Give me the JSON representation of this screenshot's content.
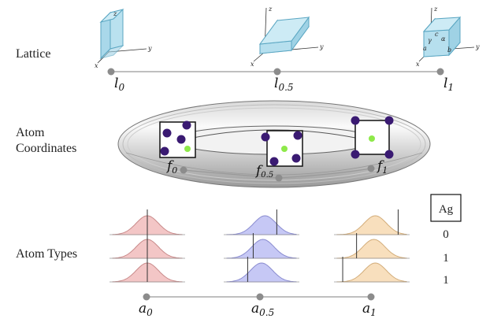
{
  "rows": {
    "lattice": "Lattice",
    "coords_line1": "Atom",
    "coords_line2": "Coordinates",
    "types": "Atom Types"
  },
  "lattice_labels": [
    {
      "base": "l",
      "sub": "0"
    },
    {
      "base": "l",
      "sub": "0.5"
    },
    {
      "base": "l",
      "sub": "1"
    }
  ],
  "axis_labels": {
    "x": "x",
    "y": "y",
    "z": "z"
  },
  "cell_params": {
    "a": "a",
    "b": "b",
    "c": "c",
    "alpha": "α",
    "gamma": "γ"
  },
  "coord_labels": [
    {
      "base": "f",
      "sub": "0"
    },
    {
      "base": "f",
      "sub": "0.5"
    },
    {
      "base": "f",
      "sub": "1"
    }
  ],
  "type_labels": [
    {
      "base": "a",
      "sub": "0"
    },
    {
      "base": "a",
      "sub": "0.5"
    },
    {
      "base": "a",
      "sub": "1"
    }
  ],
  "element_header": "Ag",
  "element_values": [
    "0",
    "1",
    "1"
  ],
  "colors": {
    "cube_fill": "#a9d8ea",
    "cube_stroke": "#5aa6c2",
    "atom_purple": "#3a1a72",
    "atom_green": "#8ee94a",
    "dist_red": "#f3c6c6",
    "dist_blue": "#c6c8f5",
    "dist_orange": "#f8dfbd",
    "node_gray": "#8c8c8c"
  }
}
